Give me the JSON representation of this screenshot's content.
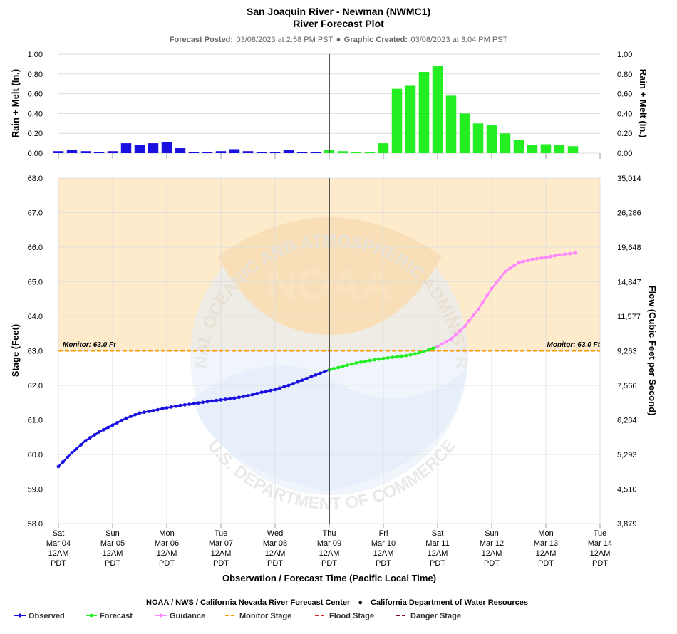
{
  "header": {
    "title": "San Joaquin River - Newman (NWMC1)",
    "subtitle": "River Forecast Plot",
    "posted_label": "Forecast Posted:",
    "posted_value": "03/08/2023 at 2:58 PM PST",
    "separator": "●",
    "created_label": "Graphic Created:",
    "created_value": "03/08/2023 at 3:04 PM PST"
  },
  "footer": {
    "credit_left": "NOAA / NWS / California Nevada River Forecast Center",
    "credit_dot": "●",
    "credit_right": "California Department of Water Resources"
  },
  "colors": {
    "observed": "#1a10e0",
    "forecast": "#22ee22",
    "guidance": "#ff88ff",
    "monitor": "#ff9900",
    "flood": "#dd2222",
    "danger": "#800040",
    "band": "#fdebcc",
    "now_line": "#555555",
    "grid": "#dddddd"
  },
  "chart_data": [
    {
      "type": "bar",
      "id": "precip",
      "ylabel": "Rain + Melt (In.)",
      "ylabel_right": "Rain + Melt (In.)",
      "ylim": [
        0,
        1.0
      ],
      "yticks": [
        "0.00",
        "0.20",
        "0.40",
        "0.60",
        "0.80",
        "1.00"
      ],
      "ytick_values": [
        0,
        0.2,
        0.4,
        0.6,
        0.8,
        1.0
      ],
      "xlim_hours": [
        0,
        240
      ],
      "bar_interval_hours": 6,
      "observed_values": [
        0.02,
        0.03,
        0.02,
        0.01,
        0.02,
        0.1,
        0.08,
        0.1,
        0.11,
        0.05,
        0.01,
        0.01,
        0.02,
        0.04,
        0.02,
        0.01,
        0.01,
        0.03,
        0.01,
        0.01
      ],
      "forecast_values": [
        0.03,
        0.02,
        0.01,
        0.01,
        0.1,
        0.65,
        0.68,
        0.82,
        0.88,
        0.58,
        0.4,
        0.3,
        0.28,
        0.2,
        0.13,
        0.08,
        0.09,
        0.08,
        0.07
      ],
      "grid": true
    },
    {
      "type": "line",
      "id": "stage",
      "xlabel": "Observation / Forecast Time (Pacific Local Time)",
      "ylabel": "Stage (Feet)",
      "ylabel_right": "Flow (Cubic Feet per Second)",
      "ylim": [
        58.0,
        68.0
      ],
      "yticks": [
        "58.0",
        "59.0",
        "60.0",
        "61.0",
        "62.0",
        "63.0",
        "64.0",
        "65.0",
        "66.0",
        "67.0",
        "68.0"
      ],
      "ytick_values": [
        58,
        59,
        60,
        61,
        62,
        63,
        64,
        65,
        66,
        67,
        68
      ],
      "flow_ticks": [
        "3,879",
        "4,510",
        "5,293",
        "6,284",
        "7,566",
        "9,263",
        "11,577",
        "14,847",
        "19,648",
        "26,286",
        "35,014"
      ],
      "x_ticks": [
        {
          "day": "Sat",
          "date": "Mar 04",
          "time": "12AM",
          "tz": "PDT",
          "hour": 0
        },
        {
          "day": "Sun",
          "date": "Mar 05",
          "time": "12AM",
          "tz": "PDT",
          "hour": 24
        },
        {
          "day": "Mon",
          "date": "Mar 06",
          "time": "12AM",
          "tz": "PDT",
          "hour": 48
        },
        {
          "day": "Tue",
          "date": "Mar 07",
          "time": "12AM",
          "tz": "PDT",
          "hour": 72
        },
        {
          "day": "Wed",
          "date": "Mar 08",
          "time": "12AM",
          "tz": "PDT",
          "hour": 96
        },
        {
          "day": "Thu",
          "date": "Mar 09",
          "time": "12AM",
          "tz": "PDT",
          "hour": 120
        },
        {
          "day": "Fri",
          "date": "Mar 10",
          "time": "12AM",
          "tz": "PDT",
          "hour": 144
        },
        {
          "day": "Sat",
          "date": "Mar 11",
          "time": "12AM",
          "tz": "PDT",
          "hour": 168
        },
        {
          "day": "Sun",
          "date": "Mar 12",
          "time": "12AM",
          "tz": "PDT",
          "hour": 192
        },
        {
          "day": "Mon",
          "date": "Mar 13",
          "time": "12AM",
          "tz": "PDT",
          "hour": 216
        },
        {
          "day": "Tue",
          "date": "Mar 14",
          "time": "12AM",
          "tz": "PDT",
          "hour": 240
        }
      ],
      "xlim_hours": [
        0,
        240
      ],
      "now_hour": 120,
      "monitor_stage": 63.0,
      "monitor_label_left": "Monitor: 63.0 Ft",
      "monitor_label_right": "Monitor: 63.0 Ft",
      "series": [
        {
          "name": "Observed",
          "key": "observed",
          "points": [
            [
              0,
              59.65
            ],
            [
              6,
              60.05
            ],
            [
              12,
              60.4
            ],
            [
              18,
              60.65
            ],
            [
              24,
              60.85
            ],
            [
              30,
              61.05
            ],
            [
              36,
              61.2
            ],
            [
              42,
              61.27
            ],
            [
              48,
              61.35
            ],
            [
              54,
              61.42
            ],
            [
              60,
              61.47
            ],
            [
              66,
              61.53
            ],
            [
              72,
              61.58
            ],
            [
              78,
              61.63
            ],
            [
              84,
              61.7
            ],
            [
              90,
              61.8
            ],
            [
              96,
              61.88
            ],
            [
              102,
              62.0
            ],
            [
              108,
              62.15
            ],
            [
              114,
              62.3
            ],
            [
              120,
              62.45
            ]
          ]
        },
        {
          "name": "Forecast",
          "key": "forecast",
          "points": [
            [
              120,
              62.45
            ],
            [
              126,
              62.55
            ],
            [
              132,
              62.65
            ],
            [
              138,
              62.72
            ],
            [
              144,
              62.78
            ],
            [
              150,
              62.83
            ],
            [
              156,
              62.88
            ],
            [
              162,
              62.98
            ],
            [
              168,
              63.12
            ]
          ]
        },
        {
          "name": "Guidance",
          "key": "guidance",
          "points": [
            [
              168,
              63.12
            ],
            [
              174,
              63.35
            ],
            [
              180,
              63.7
            ],
            [
              186,
              64.2
            ],
            [
              192,
              64.8
            ],
            [
              198,
              65.3
            ],
            [
              204,
              65.55
            ],
            [
              210,
              65.65
            ],
            [
              216,
              65.7
            ],
            [
              222,
              65.78
            ],
            [
              229,
              65.83
            ]
          ]
        }
      ],
      "grid": true
    }
  ],
  "legend": [
    {
      "key": "observed",
      "label": "Observed",
      "style": "line-dot"
    },
    {
      "key": "forecast",
      "label": "Forecast",
      "style": "line-dot"
    },
    {
      "key": "guidance",
      "label": "Guidance",
      "style": "line-dot"
    },
    {
      "key": "monitor",
      "label": "Monitor Stage",
      "style": "dash"
    },
    {
      "key": "flood",
      "label": "Flood Stage",
      "style": "dash"
    },
    {
      "key": "danger",
      "label": "Danger Stage",
      "style": "dash"
    }
  ],
  "watermark": {
    "logo_text": "NOAA",
    "ring_top": "NATIONAL OCEANIC AND ATMOSPHERIC ADMINISTRATION",
    "ring_bottom": "U.S. DEPARTMENT OF COMMERCE"
  }
}
